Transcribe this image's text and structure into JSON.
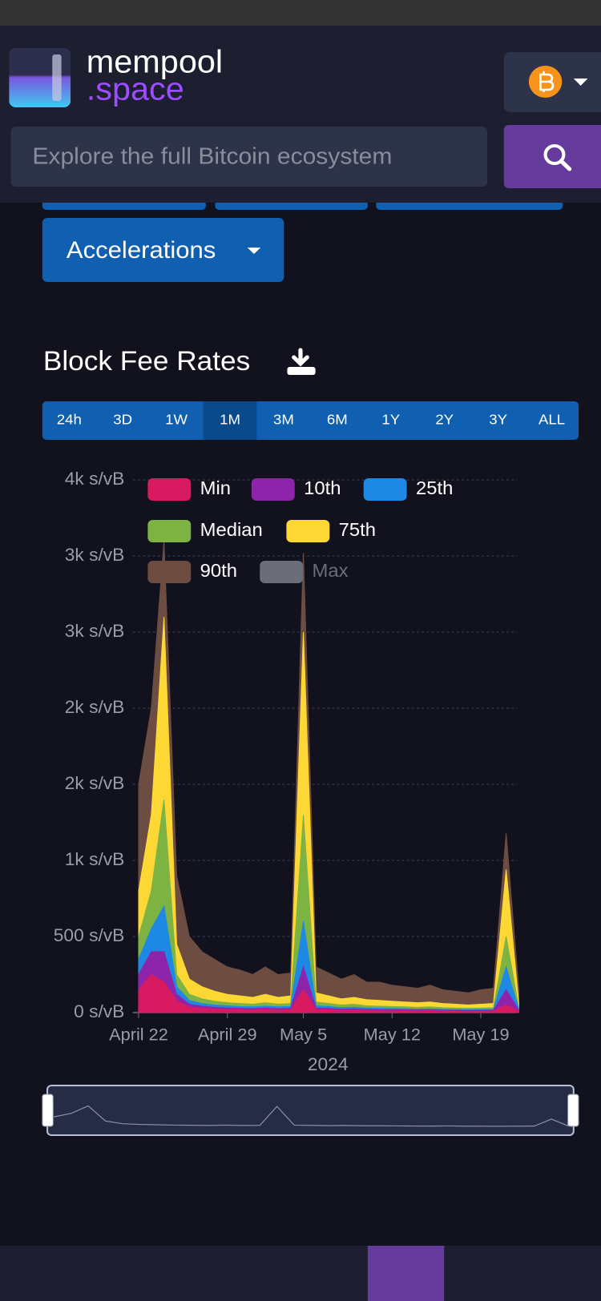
{
  "header": {
    "logo_top": "mempool",
    "logo_bottom": ".space",
    "search_placeholder": "Explore the full Bitcoin ecosystem"
  },
  "menu": {
    "button": "Accelerations"
  },
  "title": "Block Fee Rates",
  "periods": [
    "24h",
    "3D",
    "1W",
    "1M",
    "3M",
    "6M",
    "1Y",
    "2Y",
    "3Y",
    "ALL"
  ],
  "active_period": "1M",
  "chart_data": {
    "type": "area",
    "x": [
      "2024-04-22",
      "2024-04-23",
      "2024-04-24",
      "2024-04-25",
      "2024-04-26",
      "2024-04-27",
      "2024-04-28",
      "2024-04-29",
      "2024-04-30",
      "2024-05-01",
      "2024-05-02",
      "2024-05-03",
      "2024-05-04",
      "2024-05-05",
      "2024-05-06",
      "2024-05-07",
      "2024-05-08",
      "2024-05-09",
      "2024-05-10",
      "2024-05-11",
      "2024-05-12",
      "2024-05-13",
      "2024-05-14",
      "2024-05-15",
      "2024-05-16",
      "2024-05-17",
      "2024-05-18",
      "2024-05-19",
      "2024-05-20",
      "2024-05-21",
      "2024-05-22"
    ],
    "xlim": [
      "2024-04-22",
      "2024-05-22"
    ],
    "xticks": [
      {
        "value": "2024-04-22",
        "label": "April 22"
      },
      {
        "value": "2024-04-29",
        "label": "April 29"
      },
      {
        "value": "2024-05-05",
        "label": "May 5"
      },
      {
        "value": "2024-05-12",
        "label": "May 12"
      },
      {
        "value": "2024-05-19",
        "label": "May 19"
      }
    ],
    "xlabel": "2024",
    "ylim": [
      0,
      3500
    ],
    "yticks": [
      {
        "value": 0,
        "label": "0 s/vB"
      },
      {
        "value": 500,
        "label": "500 s/vB"
      },
      {
        "value": 1000,
        "label": "1k s/vB"
      },
      {
        "value": 1500,
        "label": "2k s/vB"
      },
      {
        "value": 2000,
        "label": "2k s/vB"
      },
      {
        "value": 2500,
        "label": "3k s/vB"
      },
      {
        "value": 3000,
        "label": "3k s/vB"
      },
      {
        "value": 3500,
        "label": "4k s/vB"
      }
    ],
    "grid": true,
    "series": [
      {
        "name": "Min",
        "color": "#d81b60",
        "values": [
          150,
          250,
          200,
          80,
          35,
          28,
          24,
          20,
          18,
          17,
          20,
          17,
          18,
          150,
          20,
          18,
          15,
          16,
          14,
          13,
          12,
          12,
          11,
          12,
          10,
          10,
          9,
          10,
          10,
          50,
          10
        ]
      },
      {
        "name": "10th",
        "color": "#8e24aa",
        "values": [
          250,
          400,
          400,
          120,
          55,
          42,
          35,
          30,
          28,
          26,
          30,
          26,
          28,
          300,
          30,
          27,
          23,
          25,
          21,
          20,
          19,
          18,
          17,
          18,
          16,
          15,
          14,
          15,
          16,
          150,
          16
        ]
      },
      {
        "name": "25th",
        "color": "#1e88e5",
        "values": [
          350,
          550,
          700,
          170,
          80,
          60,
          50,
          45,
          40,
          38,
          42,
          38,
          40,
          600,
          45,
          40,
          33,
          36,
          30,
          28,
          27,
          26,
          24,
          25,
          22,
          20,
          19,
          20,
          22,
          300,
          22
        ]
      },
      {
        "name": "Median",
        "color": "#7cb342",
        "values": [
          500,
          800,
          1400,
          250,
          120,
          90,
          75,
          65,
          60,
          55,
          65,
          55,
          60,
          1300,
          70,
          60,
          50,
          55,
          45,
          42,
          40,
          38,
          35,
          38,
          32,
          30,
          28,
          30,
          32,
          500,
          32
        ]
      },
      {
        "name": "75th",
        "color": "#fdd835",
        "values": [
          800,
          1300,
          2600,
          450,
          220,
          170,
          140,
          120,
          110,
          100,
          120,
          100,
          110,
          2500,
          130,
          110,
          90,
          100,
          85,
          80,
          75,
          70,
          65,
          70,
          60,
          55,
          50,
          55,
          60,
          940,
          60
        ]
      },
      {
        "name": "90th",
        "color": "#6d4c41",
        "values": [
          1500,
          2000,
          3100,
          900,
          500,
          400,
          350,
          300,
          280,
          250,
          300,
          250,
          260,
          3020,
          300,
          260,
          220,
          250,
          200,
          200,
          180,
          170,
          160,
          180,
          150,
          140,
          130,
          150,
          160,
          1180,
          150
        ]
      },
      {
        "name": "Max",
        "color": "#6b6e76",
        "hidden": true
      }
    ]
  }
}
